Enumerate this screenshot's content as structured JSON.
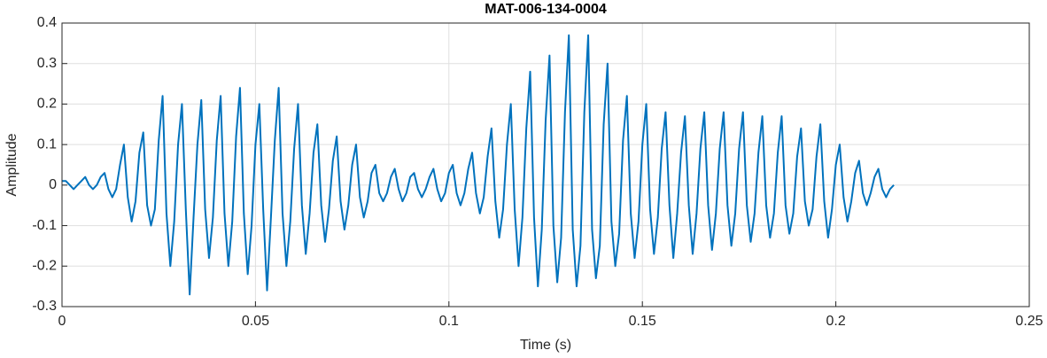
{
  "chart_data": {
    "type": "line",
    "title": "MAT-006-134-0004",
    "x_label": "Time (s)",
    "y_label": "Amplitude",
    "color": "#0072bd",
    "grid": true,
    "xlim": [
      0,
      0.25
    ],
    "xticks": [
      0,
      0.05,
      0.1,
      0.15,
      0.2,
      0.25
    ],
    "ylim": [
      -0.3,
      0.4
    ],
    "yticks": [
      -0.3,
      -0.2,
      -0.1,
      0,
      0.1,
      0.2,
      0.3,
      0.4
    ],
    "x": [
      0,
      0.001,
      0.002,
      0.003,
      0.004,
      0.005,
      0.006,
      0.007,
      0.008,
      0.009,
      0.01,
      0.011,
      0.012,
      0.013,
      0.014,
      0.015,
      0.016,
      0.017,
      0.018,
      0.019,
      0.02,
      0.021,
      0.022,
      0.023,
      0.024,
      0.025,
      0.026,
      0.027,
      0.028,
      0.029,
      0.03,
      0.031,
      0.032,
      0.033,
      0.034,
      0.035,
      0.036,
      0.037,
      0.038,
      0.039,
      0.04,
      0.041,
      0.042,
      0.043,
      0.044,
      0.045,
      0.046,
      0.047,
      0.048,
      0.049,
      0.05,
      0.051,
      0.052,
      0.053,
      0.054,
      0.055,
      0.056,
      0.057,
      0.058,
      0.059,
      0.06,
      0.061,
      0.062,
      0.063,
      0.064,
      0.065,
      0.066,
      0.067,
      0.068,
      0.069,
      0.07,
      0.071,
      0.072,
      0.073,
      0.074,
      0.075,
      0.076,
      0.077,
      0.078,
      0.079,
      0.08,
      0.081,
      0.082,
      0.083,
      0.084,
      0.085,
      0.086,
      0.087,
      0.088,
      0.089,
      0.09,
      0.091,
      0.092,
      0.093,
      0.094,
      0.095,
      0.096,
      0.097,
      0.098,
      0.099,
      0.1,
      0.101,
      0.102,
      0.103,
      0.104,
      0.105,
      0.106,
      0.107,
      0.108,
      0.109,
      0.11,
      0.111,
      0.112,
      0.113,
      0.114,
      0.115,
      0.116,
      0.117,
      0.118,
      0.119,
      0.12,
      0.121,
      0.122,
      0.123,
      0.124,
      0.125,
      0.126,
      0.127,
      0.128,
      0.129,
      0.13,
      0.131,
      0.132,
      0.133,
      0.134,
      0.135,
      0.136,
      0.137,
      0.138,
      0.139,
      0.14,
      0.141,
      0.142,
      0.143,
      0.144,
      0.145,
      0.146,
      0.147,
      0.148,
      0.149,
      0.15,
      0.151,
      0.152,
      0.153,
      0.154,
      0.155,
      0.156,
      0.157,
      0.158,
      0.159,
      0.16,
      0.161,
      0.162,
      0.163,
      0.164,
      0.165,
      0.166,
      0.167,
      0.168,
      0.169,
      0.17,
      0.171,
      0.172,
      0.173,
      0.174,
      0.175,
      0.176,
      0.177,
      0.178,
      0.179,
      0.18,
      0.181,
      0.182,
      0.183,
      0.184,
      0.185,
      0.186,
      0.187,
      0.188,
      0.189,
      0.19,
      0.191,
      0.192,
      0.193,
      0.194,
      0.195,
      0.196,
      0.197,
      0.198,
      0.199,
      0.2,
      0.201,
      0.202,
      0.203,
      0.204,
      0.205,
      0.206,
      0.207,
      0.208,
      0.209,
      0.21,
      0.211,
      0.212,
      0.213,
      0.214,
      0.215
    ],
    "values": [
      0.01,
      0.01,
      0,
      -0.01,
      0,
      0.01,
      0.02,
      0,
      -0.01,
      0,
      0.02,
      0.03,
      -0.01,
      -0.03,
      -0.01,
      0.05,
      0.1,
      -0.03,
      -0.09,
      -0.04,
      0.08,
      0.13,
      -0.05,
      -0.1,
      -0.06,
      0.11,
      0.22,
      -0.07,
      -0.2,
      -0.09,
      0.1,
      0.2,
      -0.06,
      -0.27,
      -0.08,
      0.1,
      0.21,
      -0.06,
      -0.18,
      -0.08,
      0.11,
      0.22,
      -0.07,
      -0.2,
      -0.09,
      0.12,
      0.24,
      -0.07,
      -0.22,
      -0.1,
      0.1,
      0.2,
      -0.06,
      -0.26,
      -0.08,
      0.11,
      0.24,
      -0.07,
      -0.2,
      -0.09,
      0.09,
      0.2,
      -0.05,
      -0.17,
      -0.07,
      0.08,
      0.15,
      -0.05,
      -0.14,
      -0.06,
      0.06,
      0.12,
      -0.04,
      -0.11,
      -0.05,
      0.05,
      0.1,
      -0.03,
      -0.08,
      -0.04,
      0.03,
      0.05,
      -0.02,
      -0.04,
      -0.02,
      0.02,
      0.04,
      -0.01,
      -0.04,
      -0.02,
      0.02,
      0.03,
      -0.01,
      -0.03,
      -0.01,
      0.02,
      0.04,
      -0.01,
      -0.04,
      -0.02,
      0.03,
      0.05,
      -0.02,
      -0.05,
      -0.02,
      0.04,
      0.08,
      -0.02,
      -0.07,
      -0.03,
      0.07,
      0.14,
      -0.04,
      -0.13,
      -0.06,
      0.1,
      0.2,
      -0.06,
      -0.2,
      -0.08,
      0.14,
      0.28,
      -0.08,
      -0.25,
      -0.11,
      0.16,
      0.32,
      -0.1,
      -0.24,
      -0.13,
      0.18,
      0.37,
      -0.11,
      -0.25,
      -0.15,
      0.18,
      0.37,
      -0.11,
      -0.23,
      -0.15,
      0.15,
      0.3,
      -0.09,
      -0.2,
      -0.12,
      0.11,
      0.22,
      -0.07,
      -0.18,
      -0.09,
      0.1,
      0.2,
      -0.06,
      -0.17,
      -0.08,
      0.09,
      0.18,
      -0.05,
      -0.18,
      -0.07,
      0.08,
      0.17,
      -0.05,
      -0.17,
      -0.07,
      0.09,
      0.18,
      -0.05,
      -0.16,
      -0.07,
      0.09,
      0.18,
      -0.05,
      -0.15,
      -0.07,
      0.09,
      0.18,
      -0.05,
      -0.14,
      -0.07,
      0.08,
      0.17,
      -0.05,
      -0.13,
      -0.07,
      0.08,
      0.17,
      -0.05,
      -0.12,
      -0.07,
      0.07,
      0.14,
      -0.04,
      -0.1,
      -0.06,
      0.07,
      0.15,
      -0.04,
      -0.13,
      -0.06,
      0.05,
      0.1,
      -0.03,
      -0.09,
      -0.04,
      0.03,
      0.06,
      -0.02,
      -0.05,
      -0.02,
      0.02,
      0.04,
      -0.01,
      -0.03,
      -0.01,
      0
    ]
  }
}
